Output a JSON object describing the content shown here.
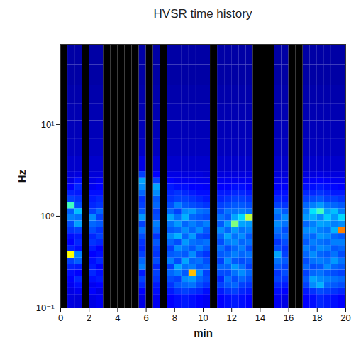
{
  "chart_data": {
    "type": "heatmap",
    "title": "HVSR time history",
    "x_label": "min",
    "y_label": "Hz",
    "log": "y",
    "xlim": [
      0,
      20
    ],
    "xticks": [
      0,
      2,
      4,
      6,
      8,
      10,
      12,
      14,
      16,
      18,
      20
    ],
    "ylim": [
      0.1,
      75
    ],
    "yticks": [
      {
        "value": 0.1,
        "label": "10⁻¹"
      },
      {
        "value": 1,
        "label": "10⁰"
      },
      {
        "value": 10,
        "label": "10¹"
      }
    ],
    "zlim": [
      0,
      16
    ],
    "x_edges": [
      0,
      0.5,
      1,
      1.5,
      2,
      2.5,
      3,
      3.5,
      4,
      4.5,
      5,
      5.5,
      6,
      6.5,
      7,
      7.5,
      8,
      8.5,
      9,
      9.5,
      10,
      10.5,
      11,
      11.5,
      12,
      12.5,
      13,
      13.5,
      14,
      14.5,
      15,
      15.5,
      16,
      16.5,
      17,
      17.5,
      18,
      18.5,
      19,
      19.5,
      20
    ],
    "y_edges": [
      0.1,
      0.14,
      0.165,
      0.19,
      0.22,
      0.26,
      0.3,
      0.35,
      0.41,
      0.48,
      0.56,
      0.65,
      0.76,
      0.89,
      1.04,
      1.21,
      1.41,
      1.65,
      1.93,
      2.25,
      2.63,
      3.07,
      4.5,
      7,
      11,
      17,
      27,
      45,
      75
    ],
    "values": [
      null,
      [
        1.5,
        1.6,
        1.8,
        2.0,
        2.2,
        2.5,
        3.0,
        10,
        2.5,
        2.0,
        2.2,
        2.8,
        3.2,
        4.0,
        3.5,
        7.0,
        3.0,
        2.5,
        2.0,
        1.6,
        1.4,
        1.2,
        1.0,
        0.9,
        0.8,
        0.7,
        0.6,
        0.6
      ],
      [
        1.4,
        1.8,
        2.2,
        2.6,
        2.0,
        2.4,
        3.5,
        4.0,
        2.2,
        2.6,
        2.4,
        3.0,
        4.5,
        3.8,
        5.0,
        3.2,
        2.8,
        2.4,
        2.6,
        2.2,
        1.5,
        1.2,
        1.0,
        0.9,
        0.8,
        0.7,
        0.6,
        0.6
      ],
      null,
      [
        1.6,
        2.0,
        1.8,
        2.2,
        2.6,
        2.4,
        2.2,
        2.0,
        2.4,
        2.8,
        2.6,
        3.2,
        3.6,
        4.2,
        3.0,
        2.6,
        2.4,
        2.2,
        1.8,
        1.6,
        1.4,
        1.2,
        1.0,
        0.9,
        0.8,
        0.7,
        0.6,
        0.6
      ],
      [
        1.8,
        1.6,
        2.0,
        2.4,
        2.2,
        2.0,
        2.6,
        2.2,
        2.0,
        2.6,
        3.0,
        2.8,
        3.4,
        3.0,
        3.6,
        2.8,
        2.6,
        2.2,
        2.0,
        1.8,
        1.4,
        1.2,
        1.0,
        0.9,
        0.8,
        0.7,
        0.6,
        0.6
      ],
      null,
      null,
      null,
      null,
      null,
      [
        1.6,
        2.0,
        2.6,
        3.0,
        2.4,
        4.0,
        3.6,
        3.0,
        2.6,
        2.8,
        3.2,
        3.8,
        3.0,
        4.4,
        3.4,
        3.0,
        2.8,
        3.6,
        4.2,
        4.6,
        3.0,
        1.6,
        1.1,
        0.9,
        0.8,
        0.7,
        0.6,
        0.6
      ],
      null,
      [
        1.8,
        2.2,
        2.4,
        2.8,
        3.0,
        2.6,
        3.2,
        2.8,
        3.0,
        3.4,
        2.8,
        3.6,
        4.0,
        3.2,
        3.0,
        3.6,
        3.4,
        4.2,
        4.6,
        3.0,
        2.0,
        1.4,
        1.0,
        0.9,
        0.8,
        0.7,
        0.6,
        0.6
      ],
      null,
      [
        2.0,
        2.4,
        2.8,
        3.2,
        3.6,
        3.0,
        4.0,
        3.4,
        3.0,
        3.6,
        4.2,
        3.4,
        3.8,
        4.6,
        3.6,
        3.2,
        2.8,
        2.6,
        2.4,
        2.0,
        1.6,
        1.2,
        1.0,
        0.9,
        0.8,
        0.7,
        0.6,
        0.6
      ],
      [
        2.2,
        2.8,
        3.4,
        3.0,
        4.0,
        4.6,
        3.2,
        3.6,
        4.2,
        3.2,
        4.8,
        3.6,
        4.4,
        3.8,
        3.0,
        4.0,
        3.0,
        2.8,
        2.2,
        1.8,
        1.6,
        1.2,
        1.0,
        0.9,
        0.8,
        0.7,
        0.6,
        0.6
      ],
      [
        2.4,
        3.0,
        3.6,
        4.2,
        3.4,
        3.8,
        4.6,
        3.4,
        3.8,
        4.4,
        3.6,
        4.2,
        3.6,
        4.8,
        4.2,
        3.4,
        3.0,
        2.6,
        2.2,
        1.8,
        1.5,
        1.2,
        1.0,
        0.9,
        0.8,
        0.7,
        0.6,
        0.6
      ],
      [
        2.2,
        2.8,
        3.8,
        4.4,
        11,
        4.0,
        3.6,
        4.2,
        3.4,
        3.8,
        4.4,
        3.6,
        4.0,
        3.6,
        4.4,
        3.2,
        2.8,
        2.4,
        2.0,
        1.8,
        1.5,
        1.2,
        1.0,
        0.9,
        0.8,
        0.7,
        0.6,
        0.6
      ],
      [
        2.0,
        2.6,
        3.2,
        3.6,
        4.2,
        3.4,
        3.8,
        3.2,
        4.0,
        3.6,
        3.2,
        4.2,
        3.6,
        3.4,
        3.8,
        3.0,
        2.6,
        2.2,
        2.0,
        1.7,
        1.5,
        1.2,
        1.0,
        0.9,
        0.8,
        0.7,
        0.6,
        0.6
      ],
      [
        1.8,
        2.2,
        2.8,
        3.2,
        3.0,
        3.6,
        3.2,
        2.8,
        3.4,
        3.8,
        3.0,
        3.4,
        4.0,
        3.2,
        3.6,
        2.8,
        2.4,
        2.2,
        1.9,
        1.7,
        1.4,
        1.2,
        1.0,
        0.9,
        0.8,
        0.7,
        0.6,
        0.6
      ],
      null,
      [
        2.0,
        2.4,
        3.0,
        2.6,
        3.2,
        3.6,
        3.0,
        3.4,
        3.8,
        3.2,
        3.6,
        4.2,
        3.4,
        3.8,
        3.2,
        3.0,
        2.6,
        2.4,
        2.0,
        1.8,
        1.5,
        1.2,
        1.0,
        0.9,
        0.8,
        0.7,
        0.6,
        0.6
      ],
      [
        2.2,
        2.8,
        3.4,
        3.8,
        3.2,
        3.6,
        4.2,
        3.6,
        3.2,
        4.0,
        4.6,
        3.6,
        4.4,
        3.4,
        3.8,
        3.2,
        2.8,
        2.4,
        2.0,
        1.8,
        1.5,
        1.2,
        1.0,
        0.9,
        0.8,
        0.7,
        0.6,
        0.6
      ],
      [
        2.4,
        3.0,
        3.6,
        3.2,
        3.8,
        4.4,
        3.4,
        4.0,
        3.6,
        4.2,
        3.8,
        4.4,
        8.0,
        4.6,
        3.8,
        3.4,
        3.0,
        2.6,
        2.2,
        1.8,
        1.5,
        1.2,
        1.0,
        0.9,
        0.8,
        0.7,
        0.6,
        0.6
      ],
      [
        2.2,
        2.6,
        3.0,
        3.6,
        4.2,
        3.8,
        3.2,
        3.6,
        4.0,
        3.6,
        4.2,
        3.8,
        4.6,
        5.4,
        4.0,
        3.4,
        3.0,
        2.6,
        2.2,
        1.8,
        1.5,
        1.2,
        1.0,
        0.9,
        0.8,
        0.7,
        0.6,
        0.6
      ],
      [
        2.0,
        2.4,
        2.8,
        3.2,
        3.6,
        3.0,
        3.4,
        3.8,
        3.2,
        3.8,
        3.4,
        4.0,
        4.4,
        9.0,
        3.8,
        3.2,
        2.8,
        2.4,
        2.0,
        1.8,
        1.5,
        1.2,
        1.0,
        0.9,
        0.8,
        0.7,
        0.6,
        0.6
      ],
      null,
      null,
      null,
      [
        1.8,
        2.2,
        2.6,
        3.0,
        2.8,
        3.4,
        3.8,
        4.6,
        3.2,
        2.8,
        3.4,
        3.8,
        4.2,
        3.6,
        4.0,
        3.0,
        2.6,
        2.2,
        1.9,
        1.7,
        1.4,
        1.2,
        1.0,
        0.9,
        0.8,
        0.7,
        0.6,
        0.6
      ],
      [
        1.6,
        2.0,
        2.4,
        2.8,
        3.2,
        3.0,
        3.4,
        3.0,
        2.8,
        3.2,
        3.6,
        3.2,
        3.8,
        4.2,
        3.4,
        2.8,
        2.4,
        2.2,
        1.9,
        1.7,
        1.4,
        1.2,
        1.0,
        0.9,
        0.8,
        0.7,
        0.6,
        0.6
      ],
      null,
      null,
      [
        2.0,
        2.4,
        3.0,
        3.4,
        3.0,
        3.6,
        3.2,
        3.6,
        4.0,
        3.4,
        3.8,
        4.2,
        3.6,
        4.4,
        4.0,
        3.6,
        3.0,
        2.6,
        2.2,
        1.9,
        1.5,
        1.2,
        1.0,
        0.9,
        0.8,
        0.7,
        0.6,
        0.6
      ],
      [
        2.2,
        2.8,
        4.2,
        4.6,
        3.6,
        3.2,
        3.8,
        4.2,
        3.6,
        4.0,
        3.6,
        4.4,
        4.0,
        4.8,
        5.6,
        4.0,
        3.2,
        2.6,
        2.2,
        1.9,
        1.5,
        1.2,
        1.0,
        0.9,
        0.8,
        0.7,
        0.6,
        0.6
      ],
      [
        2.6,
        3.2,
        4.8,
        4.2,
        3.8,
        3.4,
        4.0,
        3.6,
        4.2,
        3.8,
        4.4,
        4.0,
        4.6,
        4.2,
        7.0,
        4.4,
        3.4,
        2.8,
        2.4,
        2.0,
        1.6,
        1.2,
        1.0,
        0.9,
        0.8,
        0.7,
        0.6,
        0.6
      ],
      [
        2.4,
        3.0,
        3.6,
        4.0,
        3.4,
        4.2,
        3.8,
        3.4,
        4.0,
        3.6,
        4.2,
        3.8,
        4.4,
        5.2,
        4.6,
        3.8,
        3.0,
        2.6,
        2.2,
        1.9,
        1.5,
        1.2,
        1.0,
        0.9,
        0.8,
        0.7,
        0.6,
        0.6
      ],
      [
        2.2,
        2.8,
        3.4,
        3.8,
        3.2,
        3.6,
        4.4,
        3.8,
        3.4,
        4.0,
        3.6,
        4.8,
        4.0,
        4.4,
        5.0,
        3.6,
        3.0,
        2.4,
        2.1,
        1.8,
        1.5,
        1.2,
        1.0,
        0.9,
        0.8,
        0.7,
        0.6,
        0.6
      ],
      [
        2.0,
        2.6,
        3.2,
        3.6,
        3.0,
        3.4,
        3.8,
        3.2,
        3.6,
        4.0,
        3.4,
        12,
        4.2,
        5.4,
        4.0,
        3.4,
        2.8,
        2.4,
        2.0,
        1.8,
        1.5,
        1.2,
        1.0,
        0.9,
        0.8,
        0.7,
        0.6,
        0.6
      ]
    ]
  }
}
